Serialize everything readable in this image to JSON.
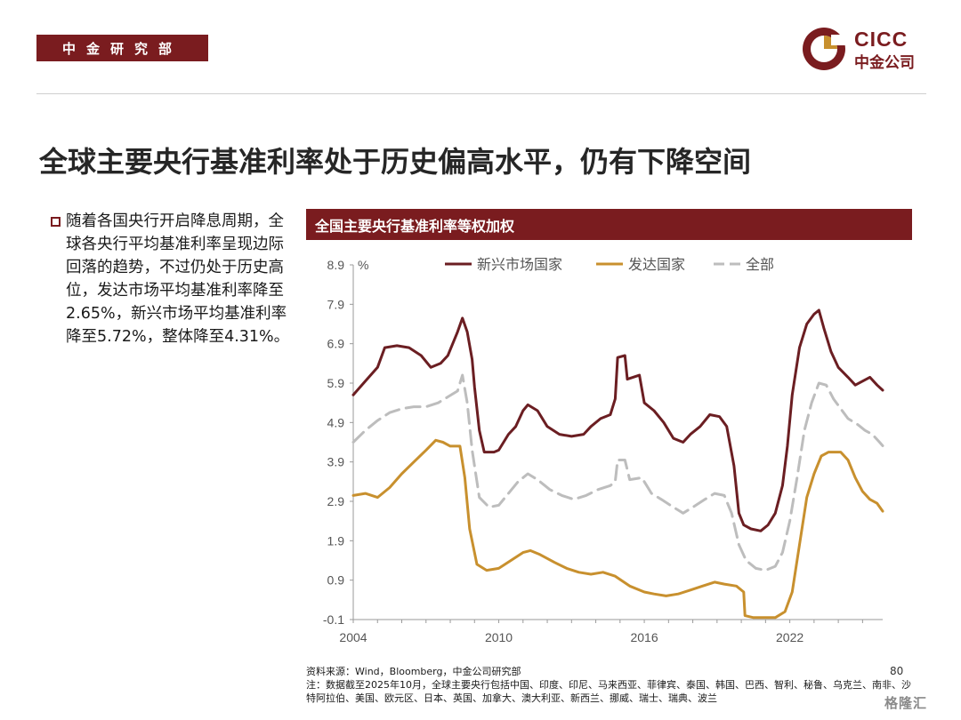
{
  "header": {
    "dept_label": "中金研究部",
    "logo_en": "CICC",
    "logo_cn": "中金公司"
  },
  "title": "全球主要央行基准利率处于历史偏高水平，仍有下降空间",
  "bullet": "随着各国央行开启降息周期，全球各央行平均基准利率呈现边际回落的趋势，不过仍处于历史高位，发达市场平均基准利率降至2.65%，新兴市场平均基准利率降至5.72%，整体降至4.31%。",
  "chart_header": "全国主要央行基准利率等权加权",
  "footer": {
    "source": "资料来源：Wind，Bloomberg，中金公司研究部",
    "note": "注：数据截至2025年10月，全球主要央行包括中国、印度、印尼、马来西亚、菲律宾、泰国、韩国、巴西、智利、秘鲁、乌克兰、南非、沙特阿拉伯、美国、欧元区、日本、英国、加拿大、澳大利亚、新西兰、挪威、瑞士、瑞典、波兰",
    "page_number": "80",
    "watermark": "格隆汇"
  },
  "colors": {
    "brand": "#7a1c1f",
    "emerging": "#6b1e22",
    "developed": "#c8902e",
    "all": "#bdbdbd"
  },
  "chart_data": {
    "type": "line",
    "title": "全国主要央行基准利率等权加权",
    "ylabel": "%",
    "ylim": [
      -0.1,
      8.9
    ],
    "yticks": [
      "-0.1",
      "0.9",
      "1.9",
      "2.9",
      "3.9",
      "4.9",
      "5.9",
      "6.9",
      "7.9",
      "8.9"
    ],
    "xlim": [
      2004,
      2025.83
    ],
    "xticks": [
      "2004",
      "2010",
      "2016",
      "2022"
    ],
    "legend": "top",
    "grid": false,
    "series": [
      {
        "name": "新兴市场国家",
        "style": "solid",
        "color": "#6b1e22",
        "points": [
          [
            2004.0,
            5.6
          ],
          [
            2004.5,
            5.95
          ],
          [
            2005.0,
            6.3
          ],
          [
            2005.3,
            6.8
          ],
          [
            2005.8,
            6.85
          ],
          [
            2006.3,
            6.8
          ],
          [
            2006.8,
            6.6
          ],
          [
            2007.2,
            6.3
          ],
          [
            2007.6,
            6.4
          ],
          [
            2007.9,
            6.6
          ],
          [
            2008.3,
            7.2
          ],
          [
            2008.5,
            7.55
          ],
          [
            2008.7,
            7.2
          ],
          [
            2008.9,
            6.5
          ],
          [
            2009.0,
            5.8
          ],
          [
            2009.2,
            4.7
          ],
          [
            2009.4,
            4.15
          ],
          [
            2009.8,
            4.15
          ],
          [
            2010.0,
            4.2
          ],
          [
            2010.4,
            4.6
          ],
          [
            2010.7,
            4.8
          ],
          [
            2011.0,
            5.2
          ],
          [
            2011.2,
            5.35
          ],
          [
            2011.6,
            5.2
          ],
          [
            2012.0,
            4.8
          ],
          [
            2012.5,
            4.6
          ],
          [
            2013.0,
            4.55
          ],
          [
            2013.5,
            4.6
          ],
          [
            2013.8,
            4.8
          ],
          [
            2014.2,
            5.0
          ],
          [
            2014.6,
            5.1
          ],
          [
            2014.8,
            5.5
          ],
          [
            2014.9,
            6.55
          ],
          [
            2015.2,
            6.6
          ],
          [
            2015.3,
            6.0
          ],
          [
            2015.8,
            6.1
          ],
          [
            2016.0,
            5.4
          ],
          [
            2016.4,
            5.2
          ],
          [
            2016.8,
            4.9
          ],
          [
            2017.2,
            4.5
          ],
          [
            2017.6,
            4.4
          ],
          [
            2017.9,
            4.6
          ],
          [
            2018.3,
            4.8
          ],
          [
            2018.7,
            5.1
          ],
          [
            2019.1,
            5.05
          ],
          [
            2019.4,
            4.8
          ],
          [
            2019.7,
            3.8
          ],
          [
            2019.9,
            2.6
          ],
          [
            2020.1,
            2.3
          ],
          [
            2020.4,
            2.2
          ],
          [
            2020.8,
            2.15
          ],
          [
            2021.1,
            2.3
          ],
          [
            2021.4,
            2.6
          ],
          [
            2021.7,
            3.3
          ],
          [
            2021.9,
            4.3
          ],
          [
            2022.1,
            5.6
          ],
          [
            2022.4,
            6.8
          ],
          [
            2022.7,
            7.4
          ],
          [
            2023.0,
            7.65
          ],
          [
            2023.2,
            7.75
          ],
          [
            2023.4,
            7.3
          ],
          [
            2023.7,
            6.7
          ],
          [
            2024.0,
            6.3
          ],
          [
            2024.4,
            6.05
          ],
          [
            2024.7,
            5.85
          ],
          [
            2025.0,
            5.95
          ],
          [
            2025.3,
            6.05
          ],
          [
            2025.6,
            5.85
          ],
          [
            2025.83,
            5.72
          ]
        ]
      },
      {
        "name": "发达国家",
        "style": "solid",
        "color": "#c8902e",
        "points": [
          [
            2004.0,
            3.05
          ],
          [
            2004.5,
            3.1
          ],
          [
            2005.0,
            3.0
          ],
          [
            2005.5,
            3.25
          ],
          [
            2006.0,
            3.6
          ],
          [
            2006.5,
            3.9
          ],
          [
            2007.0,
            4.2
          ],
          [
            2007.4,
            4.45
          ],
          [
            2007.7,
            4.4
          ],
          [
            2008.0,
            4.3
          ],
          [
            2008.4,
            4.3
          ],
          [
            2008.6,
            3.5
          ],
          [
            2008.8,
            2.2
          ],
          [
            2009.1,
            1.3
          ],
          [
            2009.5,
            1.15
          ],
          [
            2010.0,
            1.2
          ],
          [
            2010.5,
            1.4
          ],
          [
            2011.0,
            1.6
          ],
          [
            2011.3,
            1.65
          ],
          [
            2011.7,
            1.55
          ],
          [
            2012.3,
            1.35
          ],
          [
            2012.8,
            1.2
          ],
          [
            2013.3,
            1.1
          ],
          [
            2013.8,
            1.05
          ],
          [
            2014.3,
            1.1
          ],
          [
            2014.8,
            1.0
          ],
          [
            2015.4,
            0.75
          ],
          [
            2016.0,
            0.6
          ],
          [
            2016.4,
            0.55
          ],
          [
            2016.9,
            0.5
          ],
          [
            2017.4,
            0.55
          ],
          [
            2017.9,
            0.65
          ],
          [
            2018.4,
            0.75
          ],
          [
            2018.9,
            0.85
          ],
          [
            2019.3,
            0.8
          ],
          [
            2019.8,
            0.75
          ],
          [
            2020.1,
            0.6
          ],
          [
            2020.15,
            0.0
          ],
          [
            2020.5,
            -0.05
          ],
          [
            2021.0,
            -0.05
          ],
          [
            2021.4,
            -0.05
          ],
          [
            2021.8,
            0.1
          ],
          [
            2022.1,
            0.6
          ],
          [
            2022.4,
            1.8
          ],
          [
            2022.7,
            3.0
          ],
          [
            2023.0,
            3.6
          ],
          [
            2023.3,
            4.05
          ],
          [
            2023.6,
            4.15
          ],
          [
            2024.1,
            4.15
          ],
          [
            2024.4,
            3.95
          ],
          [
            2024.7,
            3.5
          ],
          [
            2025.0,
            3.15
          ],
          [
            2025.3,
            2.95
          ],
          [
            2025.6,
            2.85
          ],
          [
            2025.83,
            2.65
          ]
        ]
      },
      {
        "name": "全部",
        "style": "dashed",
        "color": "#bdbdbd",
        "points": [
          [
            2004.0,
            4.4
          ],
          [
            2004.5,
            4.7
          ],
          [
            2005.0,
            4.95
          ],
          [
            2005.5,
            5.15
          ],
          [
            2006.0,
            5.25
          ],
          [
            2006.5,
            5.3
          ],
          [
            2007.0,
            5.3
          ],
          [
            2007.5,
            5.4
          ],
          [
            2007.9,
            5.55
          ],
          [
            2008.3,
            5.7
          ],
          [
            2008.5,
            6.1
          ],
          [
            2008.7,
            5.4
          ],
          [
            2008.9,
            4.2
          ],
          [
            2009.2,
            3.0
          ],
          [
            2009.6,
            2.75
          ],
          [
            2010.0,
            2.8
          ],
          [
            2010.4,
            3.1
          ],
          [
            2010.8,
            3.4
          ],
          [
            2011.2,
            3.6
          ],
          [
            2011.6,
            3.45
          ],
          [
            2012.1,
            3.2
          ],
          [
            2012.6,
            3.05
          ],
          [
            2013.1,
            2.95
          ],
          [
            2013.6,
            3.05
          ],
          [
            2014.1,
            3.2
          ],
          [
            2014.6,
            3.3
          ],
          [
            2014.8,
            3.4
          ],
          [
            2014.9,
            3.95
          ],
          [
            2015.2,
            3.95
          ],
          [
            2015.4,
            3.45
          ],
          [
            2015.9,
            3.5
          ],
          [
            2016.3,
            3.1
          ],
          [
            2016.7,
            2.95
          ],
          [
            2017.2,
            2.75
          ],
          [
            2017.6,
            2.6
          ],
          [
            2018.0,
            2.75
          ],
          [
            2018.5,
            2.95
          ],
          [
            2018.9,
            3.1
          ],
          [
            2019.3,
            3.05
          ],
          [
            2019.6,
            2.6
          ],
          [
            2019.9,
            1.8
          ],
          [
            2020.2,
            1.4
          ],
          [
            2020.6,
            1.2
          ],
          [
            2021.0,
            1.15
          ],
          [
            2021.4,
            1.25
          ],
          [
            2021.7,
            1.6
          ],
          [
            2022.0,
            2.4
          ],
          [
            2022.3,
            3.5
          ],
          [
            2022.6,
            4.7
          ],
          [
            2022.9,
            5.4
          ],
          [
            2023.2,
            5.9
          ],
          [
            2023.5,
            5.85
          ],
          [
            2023.8,
            5.5
          ],
          [
            2024.1,
            5.25
          ],
          [
            2024.4,
            5.0
          ],
          [
            2024.8,
            4.85
          ],
          [
            2025.1,
            4.7
          ],
          [
            2025.4,
            4.6
          ],
          [
            2025.7,
            4.4
          ],
          [
            2025.83,
            4.31
          ]
        ]
      }
    ]
  }
}
